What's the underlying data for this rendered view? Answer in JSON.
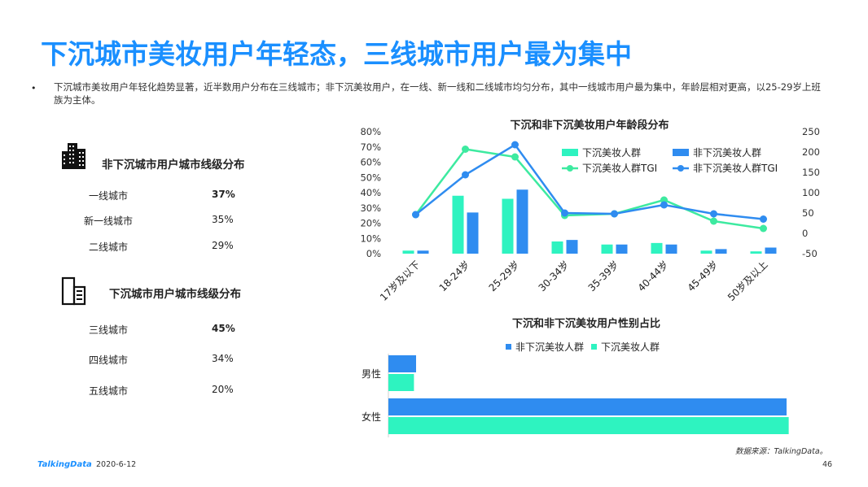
{
  "slide": {
    "title": "下沉城市美妆用户年轻态，三线城市用户最为集中",
    "bullet_symbol": "•",
    "description": "下沉城市美妆用户年轻化趋势显著，近半数用户分布在三线城市；非下沉美妆用户，在一线、新一线和二线城市均匀分布，其中一线城市用户最为集中，年龄层相对更高，以25-29岁上班族为主体。",
    "source": "数据来源：TalkingData。",
    "logo": "TalkingData",
    "date": "2020-6-12",
    "page": "46"
  },
  "non_sink": {
    "title": "非下沉城市用户城市线级分布",
    "rows": [
      {
        "label": "一线城市",
        "value": "37%",
        "bold": true
      },
      {
        "label": "新一线城市",
        "value": "35%",
        "bold": false
      },
      {
        "label": "二线城市",
        "value": "29%",
        "bold": false
      }
    ]
  },
  "sink": {
    "title": "下沉城市用户城市线级分布",
    "rows": [
      {
        "label": "三线城市",
        "value": "45%",
        "bold": true
      },
      {
        "label": "四线城市",
        "value": "34%",
        "bold": false
      },
      {
        "label": "五线城市",
        "value": "20%",
        "bold": false
      }
    ]
  },
  "chart_data": [
    {
      "type": "bar",
      "title": "下沉和非下沉美妆用户年龄段分布",
      "categories": [
        "17岁及以下",
        "18-24岁",
        "25-29岁",
        "30-34岁",
        "35-39岁",
        "40-44岁",
        "45-49岁",
        "50岁及以上"
      ],
      "ylim": [
        0,
        0.8
      ],
      "y_ticks": [
        "0%",
        "10%",
        "20%",
        "30%",
        "40%",
        "50%",
        "60%",
        "70%",
        "80%"
      ],
      "y2lim": [
        -50,
        250
      ],
      "y2_ticks": [
        "-50",
        "0",
        "50",
        "100",
        "150",
        "200",
        "250"
      ],
      "legend_position": "top-right",
      "series": [
        {
          "name": "下沉美妆人群",
          "kind": "bar",
          "axis": "left",
          "color": "#2ef3c0",
          "values": [
            0.02,
            0.38,
            0.36,
            0.08,
            0.06,
            0.07,
            0.02,
            0.015
          ]
        },
        {
          "name": "非下沉美妆人群",
          "kind": "bar",
          "axis": "left",
          "color": "#2f8cf0",
          "values": [
            0.02,
            0.27,
            0.42,
            0.09,
            0.06,
            0.06,
            0.03,
            0.04
          ]
        },
        {
          "name": "下沉美妆人群TGI",
          "kind": "line",
          "axis": "right",
          "color": "#3deaa0",
          "values": [
            46,
            207,
            188,
            44,
            48,
            82,
            30,
            12
          ]
        },
        {
          "name": "非下沉美妆人群TGI",
          "kind": "line",
          "axis": "right",
          "color": "#2f8cf0",
          "values": [
            46,
            144,
            218,
            50,
            48,
            70,
            48,
            35
          ]
        }
      ]
    },
    {
      "type": "bar",
      "orientation": "horizontal",
      "title": "下沉和非下沉美妆用户性别占比",
      "categories": [
        "男性",
        "女性"
      ],
      "xlim": [
        0,
        1
      ],
      "legend_position": "top",
      "series": [
        {
          "name": "非下沉美妆人群",
          "color": "#2f8cf0",
          "values": [
            0.065,
            0.935
          ]
        },
        {
          "name": "下沉美妆人群",
          "color": "#2ef3c0",
          "values": [
            0.06,
            0.94
          ]
        }
      ]
    }
  ]
}
